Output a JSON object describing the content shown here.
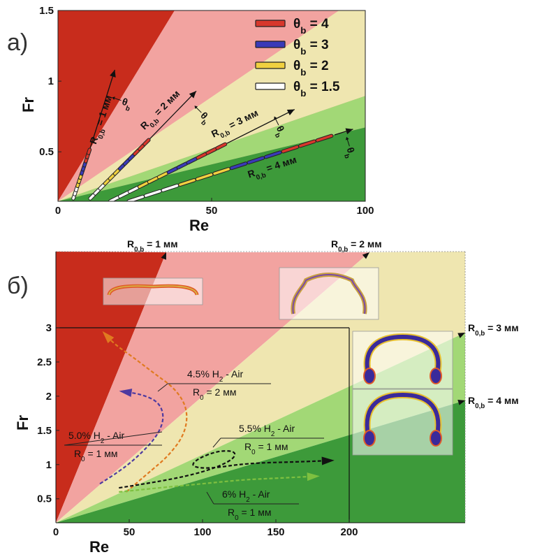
{
  "chart_data": [
    {
      "panel_label": "а)",
      "type": "line",
      "xlabel": "Re",
      "ylabel": "Fr",
      "xlim": [
        0,
        100
      ],
      "ylim": [
        0.15,
        1.5
      ],
      "xticks": [
        0,
        50,
        100
      ],
      "yticks": [
        0.5,
        1,
        1.5
      ],
      "regions": [
        {
          "color": "#c82c1c",
          "between": [
            "y-axis",
            "1 мм"
          ]
        },
        {
          "color": "#f2a3a0",
          "between": [
            "1 мм",
            "2 мм"
          ]
        },
        {
          "color": "#efe6b0",
          "between": [
            "2 мм",
            "3 мм"
          ]
        },
        {
          "color": "#a2d876",
          "between": [
            "3 мм",
            "4 мм"
          ]
        },
        {
          "color": "#3d9a3a",
          "between": [
            "4 мм",
            "x-axis"
          ]
        }
      ],
      "legend": {
        "placement": "top-right",
        "entries": [
          {
            "label_prefix": "θ",
            "label_sub": "b",
            "label_suffix": " = 4",
            "color": "#d8382c"
          },
          {
            "label_prefix": "θ",
            "label_sub": "b",
            "label_suffix": " = 3",
            "color": "#3a3ab8"
          },
          {
            "label_prefix": "θ",
            "label_sub": "b",
            "label_suffix": " = 2",
            "color": "#f0d040"
          },
          {
            "label_prefix": "θ",
            "label_sub": "b",
            "label_suffix": " = 1.5",
            "color": "#ffffff"
          }
        ]
      },
      "series": [
        {
          "name_prefix": "R",
          "name_sub": "0,b",
          "name_suffix": " = 1 мм",
          "x0": 5,
          "y0": 0.17,
          "x1": 10.4,
          "y1": 0.52,
          "arrow_to": [
            18.5,
            1.08
          ],
          "theta_label_at": [
            21,
            0.86
          ]
        },
        {
          "name_prefix": "R",
          "name_sub": "0,b",
          "name_suffix": " = 2 мм",
          "x0": 10.5,
          "y0": 0.17,
          "x1": 29.8,
          "y1": 0.59,
          "arrow_to": [
            45,
            0.93
          ],
          "theta_label_at": [
            47,
            0.77
          ]
        },
        {
          "name_prefix": "R",
          "name_sub": "0,b",
          "name_suffix": " = 3 мм",
          "x0": 17,
          "y0": 0.15,
          "x1": 55,
          "y1": 0.56,
          "arrow_to": [
            77,
            0.8
          ],
          "theta_label_at": [
            72,
            0.68
          ]
        },
        {
          "name_prefix": "R",
          "name_sub": "0,b",
          "name_suffix": " = 4 мм",
          "x0": 23,
          "y0": 0.15,
          "x1": 90,
          "y1": 0.62,
          "arrow_to": [
            96,
            0.66
          ],
          "theta_label_at": [
            95,
            0.53
          ]
        }
      ],
      "theta_arrow": {
        "prefix": "θ",
        "sub": "b"
      }
    },
    {
      "panel_label": "б)",
      "type": "line",
      "xlabel": "Re",
      "ylabel": "Fr",
      "xlim": [
        0,
        200
      ],
      "ylim": [
        0.15,
        3
      ],
      "xticks": [
        0,
        50,
        100,
        150,
        200
      ],
      "yticks": [
        0.5,
        1,
        1.5,
        2,
        2.5,
        3
      ],
      "boundaries": [
        {
          "prefix": "R",
          "sub": "0,b",
          "suffix": " = 1 мм"
        },
        {
          "prefix": "R",
          "sub": "0,b",
          "suffix": " = 2 мм"
        },
        {
          "prefix": "R",
          "sub": "0,b",
          "suffix": " = 3 мм"
        },
        {
          "prefix": "R",
          "sub": "0,b",
          "suffix": " = 4 мм"
        }
      ],
      "series": [
        {
          "name_line1_prefix": "5.0% H",
          "name_line1_sub": "2",
          "name_line1_suffix": " - Air",
          "name_line2_prefix": "R",
          "name_line2_sub": "0",
          "name_line2_suffix": " = 1 мм",
          "color": "#4d3aa0",
          "x": [
            30,
            45,
            60,
            70,
            74,
            70,
            58,
            45
          ],
          "y": [
            0.72,
            0.92,
            1.2,
            1.45,
            1.7,
            1.92,
            2.03,
            2.07
          ]
        },
        {
          "name_line1_prefix": "4.5% H",
          "name_line1_sub": "2",
          "name_line1_suffix": " - Air",
          "name_line2_prefix": "R",
          "name_line2_sub": "0",
          "name_line2_suffix": " = 2 мм",
          "color": "#e07a20",
          "x": [
            48,
            62,
            77,
            88,
            90,
            82,
            66,
            52,
            40,
            33
          ],
          "y": [
            0.6,
            0.86,
            1.13,
            1.45,
            1.8,
            2.1,
            2.35,
            2.58,
            2.76,
            2.92
          ]
        },
        {
          "name_line1_prefix": "5.5% H",
          "name_line1_sub": "2",
          "name_line1_suffix": " - Air",
          "name_line2_prefix": "R",
          "name_line2_sub": "0",
          "name_line2_suffix": " = 1 мм",
          "color": "#111111",
          "x": [
            43,
            70,
            95,
            112,
            122,
            122,
            110,
            96,
            92,
            105,
            130,
            165,
            188
          ],
          "y": [
            0.66,
            0.75,
            0.86,
            0.98,
            1.1,
            1.2,
            1.2,
            1.08,
            0.97,
            0.94,
            1.02,
            1.04,
            1.06
          ]
        },
        {
          "name_line1_prefix": "6% H",
          "name_line1_sub": "2",
          "name_line1_suffix": " - Air",
          "name_line2_prefix": "R",
          "name_line2_sub": "0",
          "name_line2_suffix": " = 1 мм",
          "color": "#7ec040",
          "x": [
            43,
            70,
            100,
            128,
            150,
            168,
            178
          ],
          "y": [
            0.6,
            0.66,
            0.72,
            0.78,
            0.8,
            0.82,
            0.83
          ]
        }
      ]
    }
  ]
}
